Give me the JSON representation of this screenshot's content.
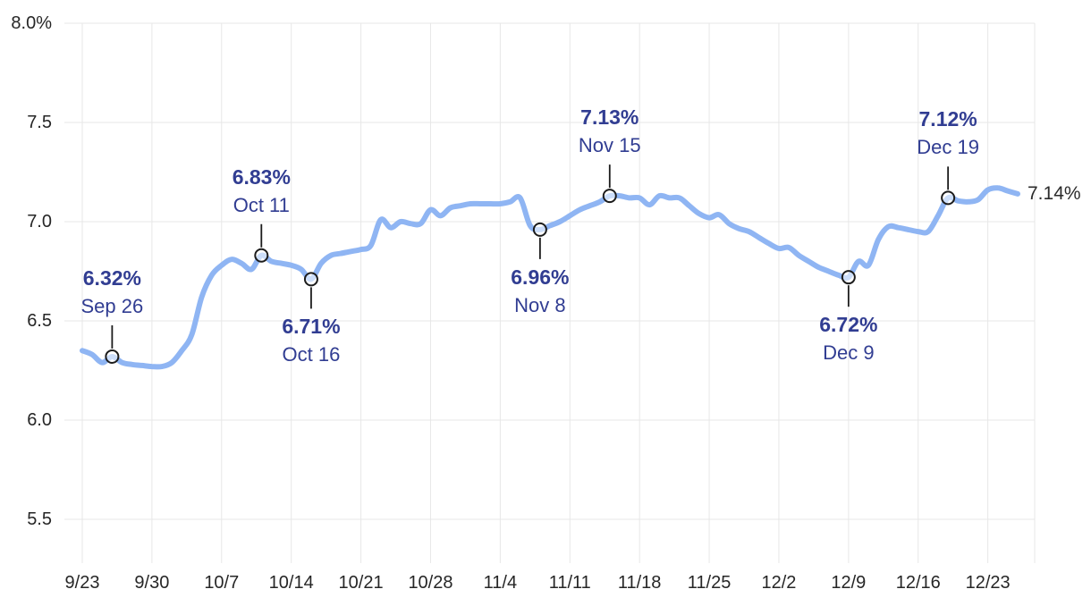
{
  "chart_data": {
    "type": "line",
    "title": "",
    "xlabel": "",
    "ylabel": "",
    "ylim": [
      5.5,
      8.0
    ],
    "grid": true,
    "legend": false,
    "end_label": "7.14%",
    "y_ticks": [
      {
        "label": "8.0%",
        "value": 8.0
      },
      {
        "label": "7.5",
        "value": 7.5
      },
      {
        "label": "7.0",
        "value": 7.0
      },
      {
        "label": "6.5",
        "value": 6.5
      },
      {
        "label": "6.0",
        "value": 6.0
      },
      {
        "label": "5.5",
        "value": 5.5
      }
    ],
    "x_ticks": [
      {
        "label": "9/23",
        "day": 0
      },
      {
        "label": "9/30",
        "day": 7
      },
      {
        "label": "10/7",
        "day": 14
      },
      {
        "label": "10/14",
        "day": 21
      },
      {
        "label": "10/21",
        "day": 28
      },
      {
        "label": "10/28",
        "day": 35
      },
      {
        "label": "11/4",
        "day": 42
      },
      {
        "label": "11/11",
        "day": 49
      },
      {
        "label": "11/18",
        "day": 56
      },
      {
        "label": "11/25",
        "day": 63
      },
      {
        "label": "12/2",
        "day": 70
      },
      {
        "label": "12/9",
        "day": 77
      },
      {
        "label": "12/16",
        "day": 84
      },
      {
        "label": "12/23",
        "day": 91
      }
    ],
    "x": [
      "9/23",
      "9/24",
      "9/25",
      "9/26",
      "9/27",
      "9/28",
      "9/29",
      "9/30",
      "10/1",
      "10/2",
      "10/3",
      "10/4",
      "10/5",
      "10/6",
      "10/7",
      "10/8",
      "10/9",
      "10/10",
      "10/11",
      "10/12",
      "10/13",
      "10/14",
      "10/15",
      "10/16",
      "10/17",
      "10/18",
      "10/19",
      "10/20",
      "10/21",
      "10/22",
      "10/23",
      "10/24",
      "10/25",
      "10/26",
      "10/27",
      "10/28",
      "10/29",
      "10/30",
      "10/31",
      "11/1",
      "11/2",
      "11/3",
      "11/4",
      "11/5",
      "11/6",
      "11/7",
      "11/8",
      "11/9",
      "11/10",
      "11/11",
      "11/12",
      "11/13",
      "11/14",
      "11/15",
      "11/16",
      "11/17",
      "11/18",
      "11/19",
      "11/20",
      "11/21",
      "11/22",
      "11/23",
      "11/24",
      "11/25",
      "11/26",
      "11/27",
      "11/28",
      "11/29",
      "11/30",
      "12/1",
      "12/2",
      "12/3",
      "12/4",
      "12/5",
      "12/6",
      "12/7",
      "12/8",
      "12/9",
      "12/10",
      "12/11",
      "12/12",
      "12/13",
      "12/14",
      "12/15",
      "12/16",
      "12/17",
      "12/18",
      "12/19",
      "12/20",
      "12/21",
      "12/22",
      "12/23",
      "12/24",
      "12/25",
      "12/26"
    ],
    "values": [
      6.35,
      6.33,
      6.29,
      6.32,
      6.29,
      6.28,
      6.275,
      6.27,
      6.27,
      6.29,
      6.35,
      6.43,
      6.62,
      6.73,
      6.78,
      6.81,
      6.79,
      6.76,
      6.83,
      6.8,
      6.79,
      6.78,
      6.76,
      6.71,
      6.79,
      6.83,
      6.84,
      6.85,
      6.86,
      6.88,
      7.01,
      6.97,
      7.0,
      6.99,
      6.99,
      7.06,
      7.03,
      7.07,
      7.08,
      7.09,
      7.09,
      7.09,
      7.09,
      7.1,
      7.12,
      6.98,
      6.96,
      6.98,
      7.0,
      7.03,
      7.06,
      7.08,
      7.1,
      7.13,
      7.13,
      7.12,
      7.12,
      7.085,
      7.13,
      7.12,
      7.12,
      7.08,
      7.04,
      7.02,
      7.035,
      6.99,
      6.965,
      6.95,
      6.92,
      6.89,
      6.865,
      6.87,
      6.83,
      6.8,
      6.77,
      6.75,
      6.73,
      6.72,
      6.8,
      6.78,
      6.91,
      6.975,
      6.97,
      6.96,
      6.95,
      6.95,
      7.03,
      7.12,
      7.105,
      7.1,
      7.11,
      7.16,
      7.17,
      7.155,
      7.14
    ],
    "annotations": [
      {
        "value": "6.32%",
        "date": "Sep 26",
        "day": 3,
        "rate": 6.32,
        "position": "above"
      },
      {
        "value": "6.83%",
        "date": "Oct 11",
        "day": 18,
        "rate": 6.83,
        "position": "above"
      },
      {
        "value": "6.71%",
        "date": "Oct 16",
        "day": 23,
        "rate": 6.71,
        "position": "below"
      },
      {
        "value": "6.96%",
        "date": "Nov 8",
        "day": 46,
        "rate": 6.96,
        "position": "below"
      },
      {
        "value": "7.13%",
        "date": "Nov 15",
        "day": 53,
        "rate": 7.13,
        "position": "above"
      },
      {
        "value": "6.72%",
        "date": "Dec 9",
        "day": 77,
        "rate": 6.72,
        "position": "below"
      },
      {
        "value": "7.12%",
        "date": "Dec 19",
        "day": 87,
        "rate": 7.12,
        "position": "above"
      }
    ],
    "colors": {
      "line": "#8FB5F3",
      "grid": "#E7E7E7",
      "marker_stroke": "#1C1C1C",
      "marker_fill": "rgba(255,255,255,0.55)",
      "annotation_text": "#313D92",
      "axis_text": "#262626",
      "end_label": "#2B2B2B",
      "background": "#FFFFFF"
    }
  }
}
